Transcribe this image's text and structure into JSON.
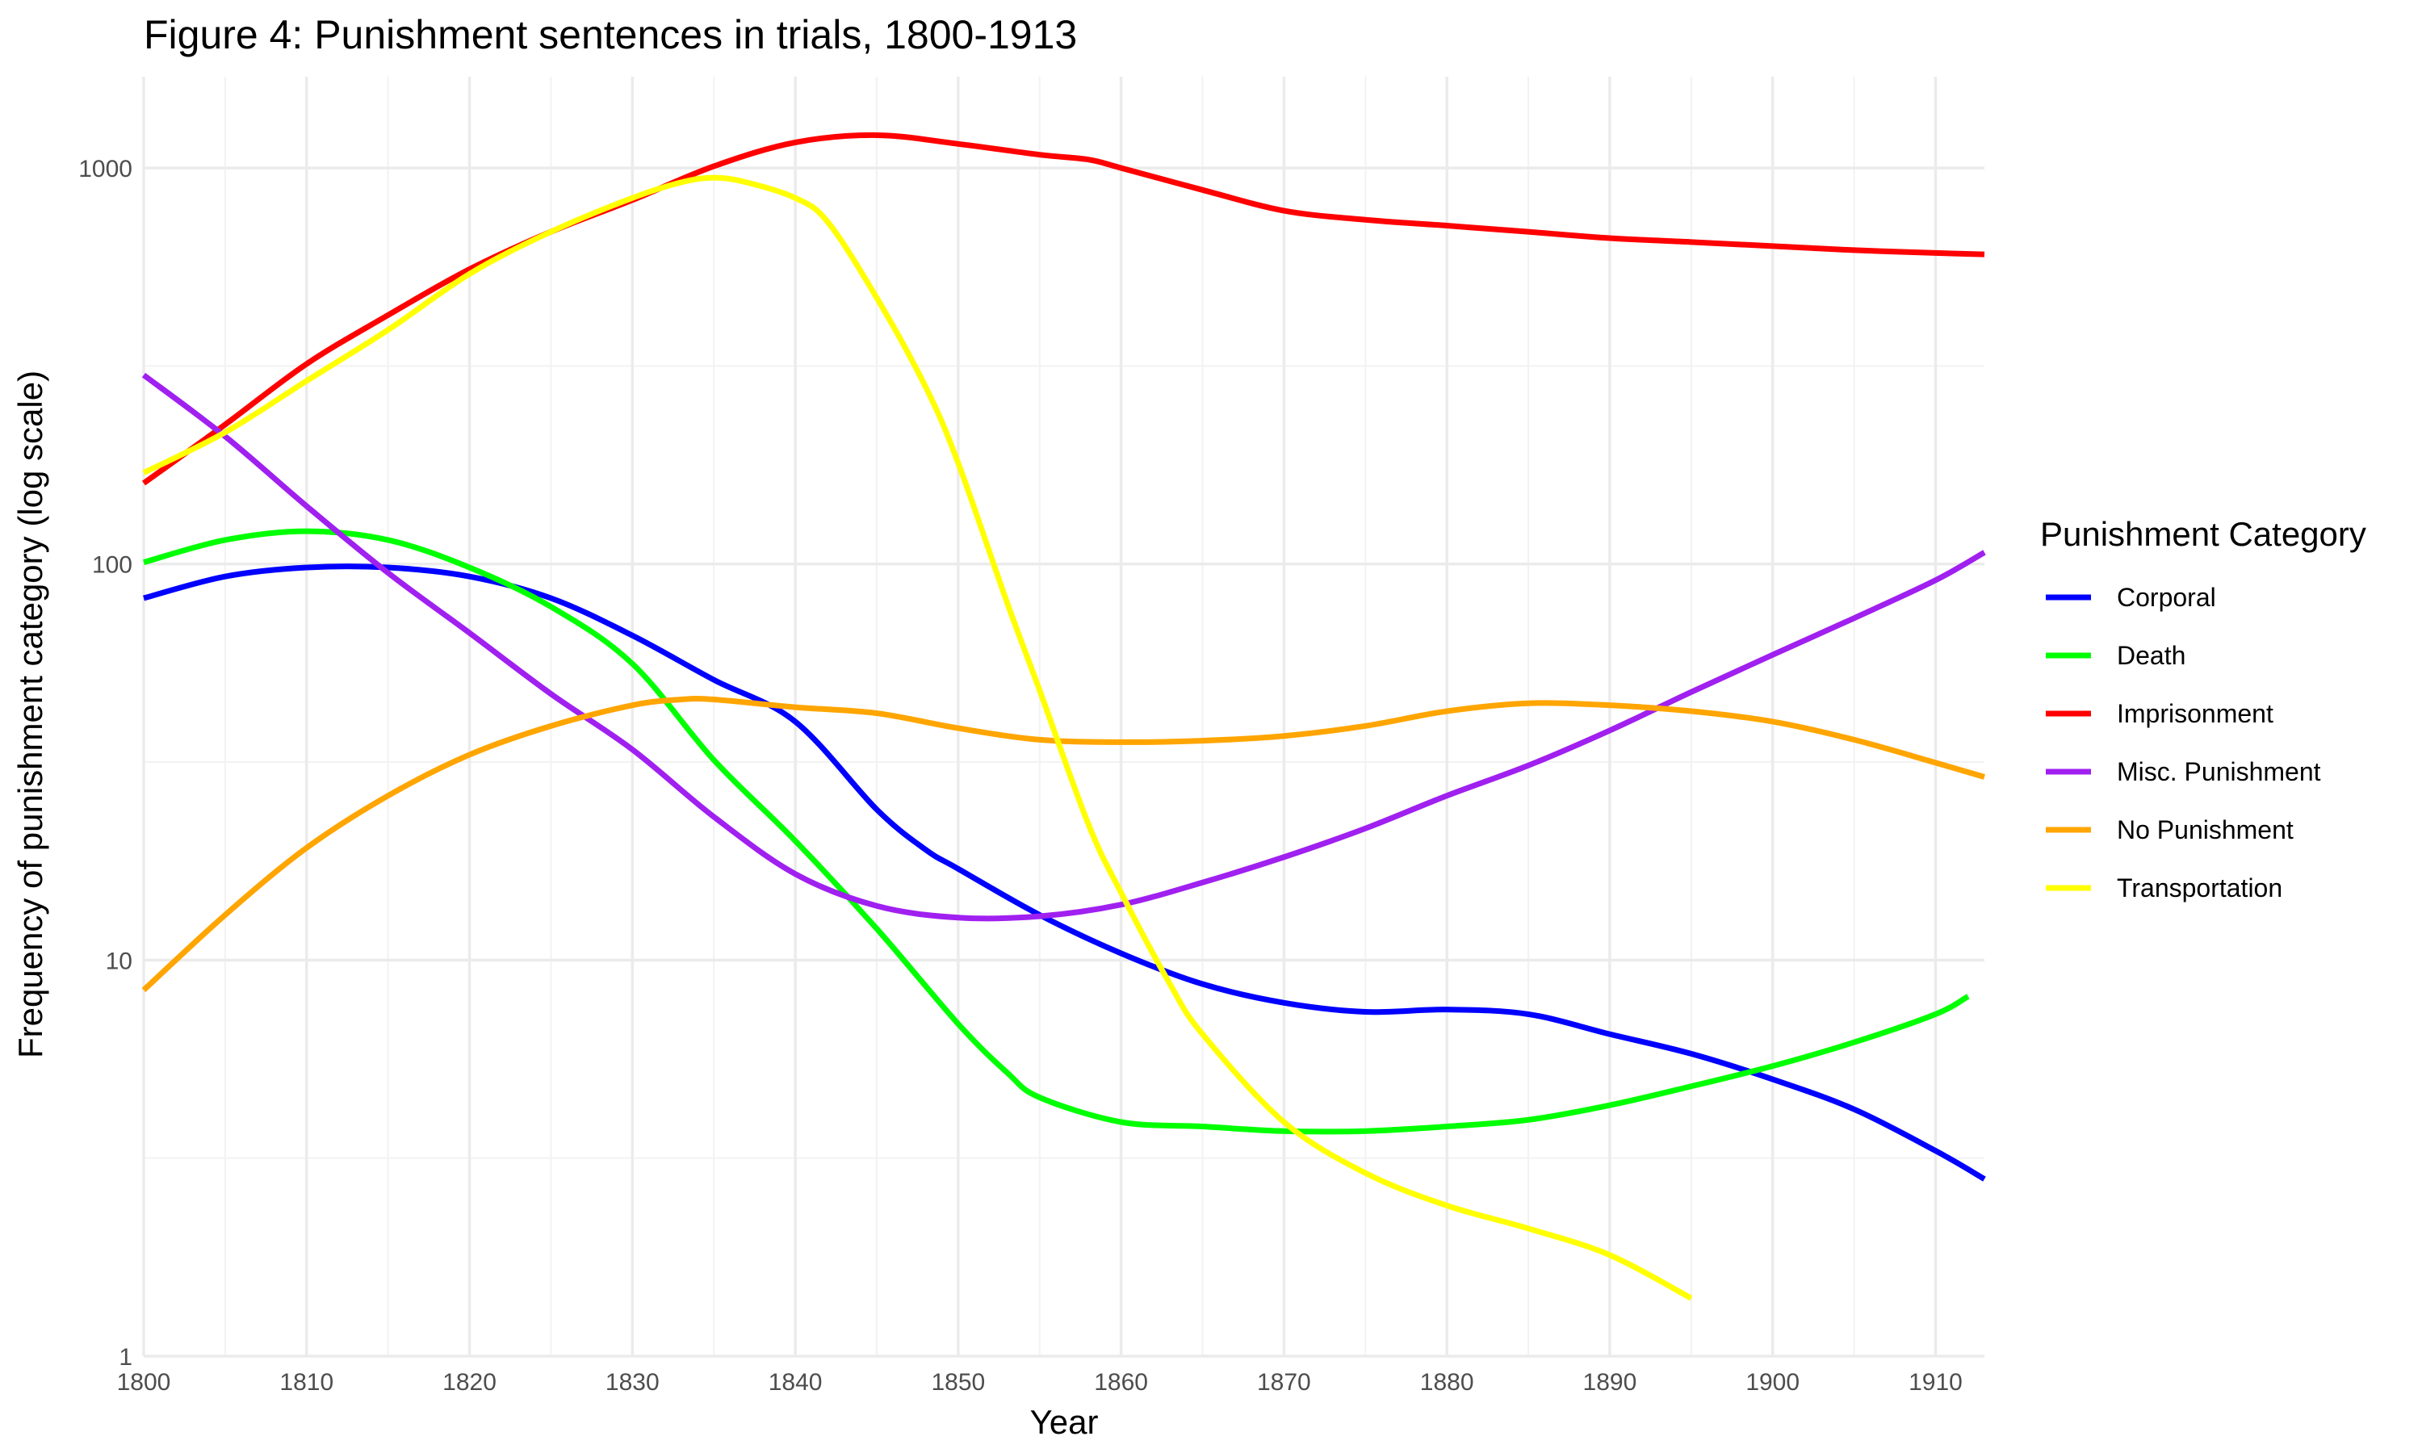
{
  "chart_data": {
    "type": "line",
    "title": "Figure 4: Punishment sentences in trials, 1800-1913",
    "xlabel": "Year",
    "ylabel": "Frequency of punishment category (log scale)",
    "xlim": [
      1800,
      1913
    ],
    "ylim": [
      1,
      1700
    ],
    "y_scale": "log10",
    "x_ticks": [
      1800,
      1810,
      1820,
      1830,
      1840,
      1850,
      1860,
      1870,
      1880,
      1890,
      1900,
      1910
    ],
    "y_ticks": [
      1,
      10,
      100,
      1000
    ],
    "y_tick_labels": [
      "1",
      "10",
      "100",
      "1000"
    ],
    "grid": true,
    "legend": {
      "title": "Punishment Category",
      "position": "right"
    },
    "series": [
      {
        "name": "Corporal",
        "color": "#0000ff",
        "x": [
          1800,
          1805,
          1810,
          1815,
          1820,
          1825,
          1830,
          1835,
          1840,
          1845,
          1848,
          1850,
          1855,
          1860,
          1865,
          1870,
          1875,
          1880,
          1885,
          1890,
          1895,
          1900,
          1905,
          1910,
          1913
        ],
        "y": [
          82,
          93,
          98,
          98,
          93,
          82,
          66,
          51,
          40,
          24,
          19,
          17,
          13,
          10.4,
          8.7,
          7.8,
          7.4,
          7.5,
          7.3,
          6.5,
          5.8,
          5,
          4.2,
          3.3,
          2.8
        ]
      },
      {
        "name": "Death",
        "color": "#00ff00",
        "x": [
          1800,
          1805,
          1810,
          1815,
          1820,
          1825,
          1830,
          1835,
          1840,
          1845,
          1850,
          1853,
          1855,
          1860,
          1865,
          1870,
          1875,
          1880,
          1885,
          1890,
          1895,
          1900,
          1905,
          1910,
          1912
        ],
        "y": [
          101,
          115,
          121,
          115,
          98,
          78,
          56,
          32,
          20,
          12,
          6.9,
          5.2,
          4.5,
          3.9,
          3.8,
          3.7,
          3.7,
          3.8,
          3.95,
          4.3,
          4.8,
          5.4,
          6.2,
          7.3,
          8.1
        ]
      },
      {
        "name": "Imprisonment",
        "color": "#ff0000",
        "x": [
          1800,
          1805,
          1810,
          1815,
          1820,
          1825,
          1830,
          1835,
          1840,
          1845,
          1850,
          1855,
          1858,
          1860,
          1865,
          1870,
          1875,
          1880,
          1885,
          1890,
          1895,
          1900,
          1905,
          1910,
          1913
        ],
        "y": [
          160,
          225,
          320,
          425,
          555,
          690,
          830,
          1010,
          1160,
          1210,
          1150,
          1080,
          1050,
          1000,
          880,
          780,
          740,
          715,
          690,
          665,
          650,
          635,
          620,
          610,
          605
        ]
      },
      {
        "name": "Misc. Punishment",
        "color": "#a020f0",
        "x": [
          1800,
          1805,
          1810,
          1815,
          1820,
          1825,
          1830,
          1835,
          1840,
          1845,
          1850,
          1855,
          1860,
          1865,
          1870,
          1875,
          1880,
          1885,
          1890,
          1895,
          1900,
          1905,
          1910,
          1913
        ],
        "y": [
          300,
          210,
          140,
          95,
          67,
          47,
          34,
          23,
          16.5,
          13.7,
          12.8,
          12.9,
          13.8,
          15.7,
          18.2,
          21.5,
          26,
          31,
          38,
          47.5,
          59,
          73,
          91,
          107
        ]
      },
      {
        "name": "No Punishment",
        "color": "#ffa500",
        "x": [
          1800,
          1805,
          1810,
          1815,
          1820,
          1825,
          1830,
          1833,
          1835,
          1840,
          1845,
          1850,
          1855,
          1860,
          1865,
          1870,
          1875,
          1880,
          1885,
          1890,
          1895,
          1900,
          1905,
          1910,
          1913
        ],
        "y": [
          8.4,
          13,
          19.2,
          26,
          33,
          39,
          44,
          45.5,
          45.5,
          43.5,
          42,
          38.5,
          36,
          35.5,
          35.8,
          36.8,
          39,
          42.5,
          44.5,
          44,
          42.5,
          40,
          36,
          31.5,
          29
        ]
      },
      {
        "name": "Transportation",
        "color": "#ffff00",
        "x": [
          1800,
          1805,
          1810,
          1815,
          1820,
          1825,
          1830,
          1833,
          1835,
          1837,
          1840,
          1842,
          1845,
          1848,
          1850,
          1853,
          1855,
          1858,
          1860,
          1863,
          1865,
          1870,
          1875,
          1880,
          1885,
          1890,
          1895
        ],
        "y": [
          170,
          215,
          290,
          390,
          540,
          690,
          840,
          920,
          945,
          920,
          840,
          730,
          470,
          280,
          180,
          80,
          48,
          22,
          14.8,
          8.7,
          6.5,
          3.9,
          2.9,
          2.4,
          2.1,
          1.8,
          1.4
        ]
      }
    ]
  }
}
